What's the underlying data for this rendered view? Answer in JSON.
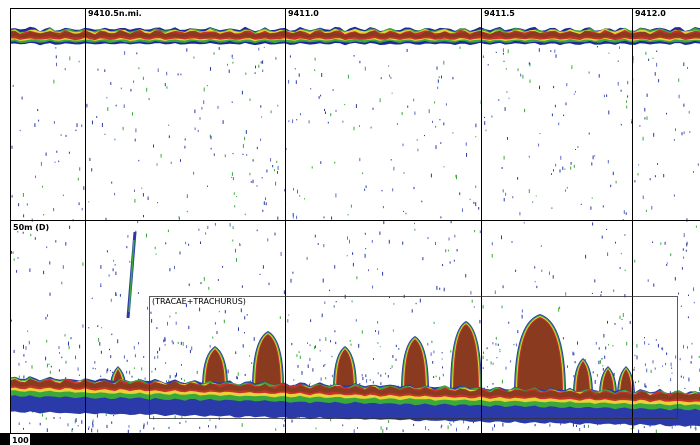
{
  "distance_marks": [
    "9410.5n.mi.",
    "9411.0",
    "9411.5",
    "9412.0"
  ],
  "depth_marks": [
    "50m (D)",
    "100"
  ],
  "annotation": "(TRACAE+TRACHURUS)"
}
